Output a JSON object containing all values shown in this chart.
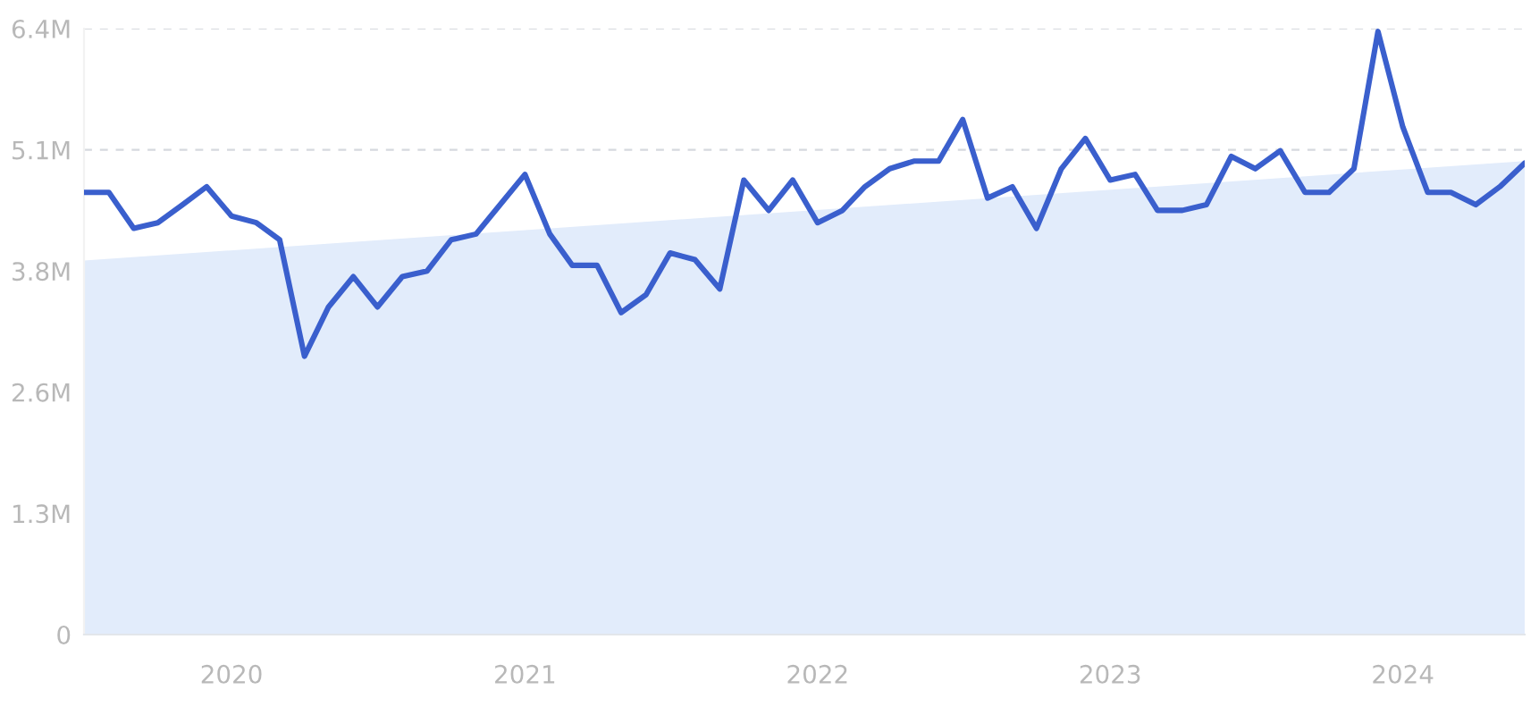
{
  "chart_data": {
    "type": "line",
    "x": [
      "2019-07",
      "2019-08",
      "2019-09",
      "2019-10",
      "2019-11",
      "2019-12",
      "2020-01",
      "2020-02",
      "2020-03",
      "2020-04",
      "2020-05",
      "2020-06",
      "2020-07",
      "2020-08",
      "2020-09",
      "2020-10",
      "2020-11",
      "2020-12",
      "2021-01",
      "2021-02",
      "2021-03",
      "2021-04",
      "2021-05",
      "2021-06",
      "2021-07",
      "2021-08",
      "2021-09",
      "2021-10",
      "2021-11",
      "2021-12",
      "2022-01",
      "2022-02",
      "2022-03",
      "2022-04",
      "2022-05",
      "2022-06",
      "2022-07",
      "2022-08",
      "2022-09",
      "2022-10",
      "2022-11",
      "2022-12",
      "2023-01",
      "2023-02",
      "2023-03",
      "2023-04",
      "2023-05",
      "2023-06",
      "2023-07",
      "2023-08",
      "2023-09",
      "2023-10",
      "2023-11",
      "2023-12",
      "2024-01",
      "2024-02",
      "2024-03",
      "2024-04",
      "2024-05",
      "2024-06"
    ],
    "series": [
      {
        "type": "area",
        "x": [
          "2019-07",
          "2024-06"
        ],
        "values": [
          3950000,
          5000000
        ],
        "color": "#e2ecfb"
      },
      {
        "color": "#3a5fcd",
        "values": [
          4670000,
          4670000,
          4290000,
          4350000,
          4540000,
          4730000,
          4420000,
          4350000,
          4170000,
          2940000,
          3460000,
          3780000,
          3460000,
          3780000,
          3840000,
          4170000,
          4230000,
          4540000,
          4860000,
          4230000,
          3900000,
          3900000,
          3400000,
          3590000,
          4030000,
          3960000,
          3650000,
          4800000,
          4480000,
          4800000,
          4350000,
          4480000,
          4730000,
          4920000,
          5000000,
          5000000,
          5440000,
          4610000,
          4730000,
          4290000,
          4920000,
          5240000,
          4800000,
          4860000,
          4480000,
          4480000,
          4540000,
          5050000,
          4920000,
          5110000,
          4670000,
          4670000,
          4920000,
          6370000,
          5360000,
          4670000,
          4670000,
          4540000,
          4730000,
          4980000
        ]
      }
    ],
    "xlim": [
      "2019-07",
      "2024-06"
    ],
    "xticks": [
      {
        "value": "2020-01",
        "label": "2020"
      },
      {
        "value": "2021-01",
        "label": "2021"
      },
      {
        "value": "2022-01",
        "label": "2022"
      },
      {
        "value": "2023-01",
        "label": "2023"
      },
      {
        "value": "2024-01",
        "label": "2024"
      }
    ],
    "ylim": [
      0,
      6400000
    ],
    "yticks": [
      0,
      {
        "value": 1280000,
        "label": "1.3M"
      },
      {
        "value": 2560000,
        "label": "2.6M"
      },
      {
        "value": 3840000,
        "label": "3.8M"
      },
      {
        "value": 5120000,
        "label": "5.1M"
      },
      {
        "value": 6400000,
        "label": "6.4M"
      }
    ],
    "grid": "y",
    "marker": "none",
    "line_style": "solid"
  }
}
